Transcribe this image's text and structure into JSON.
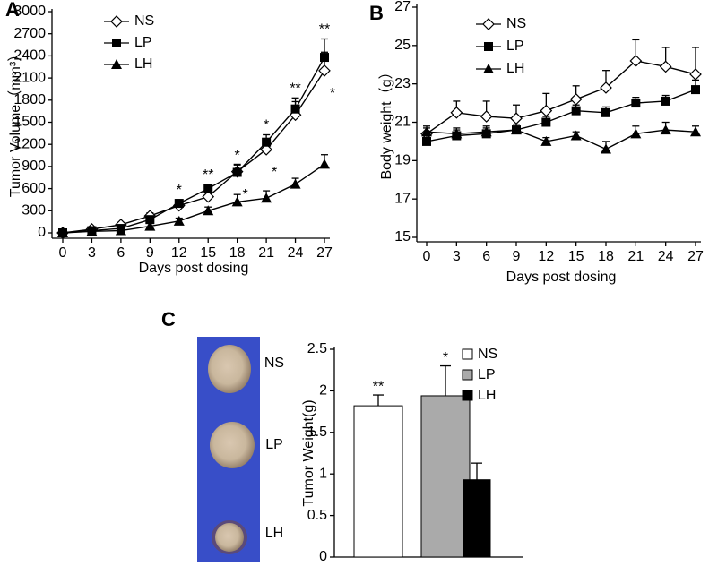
{
  "chart_data": [
    {
      "type": "line",
      "panel": "A",
      "y_label": "Tumor Volume（mm³）",
      "x_label": "Days post dosing",
      "x": [
        0,
        3,
        6,
        9,
        12,
        15,
        18,
        21,
        24,
        27
      ],
      "xlim": [
        0,
        27
      ],
      "xticks": [
        0,
        3,
        6,
        9,
        12,
        15,
        18,
        21,
        24,
        27
      ],
      "ylim": [
        0,
        3000
      ],
      "yticks": [
        0,
        300,
        600,
        900,
        1200,
        1500,
        1800,
        2100,
        2400,
        2700,
        3000
      ],
      "series": [
        {
          "name": "NS",
          "color": "#000000",
          "marker": "diamond",
          "values": [
            0,
            50,
            110,
            230,
            370,
            490,
            830,
            1130,
            1600,
            2200
          ],
          "errors": [
            20,
            20,
            30,
            40,
            50,
            60,
            100,
            150,
            180,
            250
          ],
          "significance": [
            null,
            null,
            null,
            null,
            null,
            null,
            "*",
            "*",
            null,
            "*"
          ]
        },
        {
          "name": "LP",
          "color": "#000000",
          "marker": "square",
          "values": [
            0,
            30,
            60,
            180,
            400,
            600,
            820,
            1230,
            1680,
            2380
          ],
          "errors": [
            20,
            20,
            30,
            40,
            50,
            60,
            100,
            100,
            150,
            250
          ],
          "significance": [
            null,
            null,
            null,
            null,
            "*",
            "**",
            "*",
            "*",
            "**",
            "**"
          ]
        },
        {
          "name": "LH",
          "color": "#000000",
          "marker": "triangle",
          "values": [
            0,
            20,
            30,
            90,
            160,
            300,
            420,
            470,
            660,
            930
          ],
          "errors": [
            20,
            20,
            30,
            40,
            40,
            50,
            100,
            100,
            80,
            130
          ],
          "significance": [
            null,
            null,
            null,
            null,
            null,
            null,
            null,
            null,
            null,
            null
          ]
        }
      ]
    },
    {
      "type": "line",
      "panel": "B",
      "y_label": "Body weight（g）",
      "x_label": "Days post dosing",
      "x": [
        0,
        3,
        6,
        9,
        12,
        15,
        18,
        21,
        24,
        27
      ],
      "xlim": [
        0,
        27
      ],
      "xticks": [
        0,
        3,
        6,
        9,
        12,
        15,
        18,
        21,
        24,
        27
      ],
      "ylim": [
        15,
        27
      ],
      "yticks": [
        15,
        17,
        19,
        21,
        23,
        25,
        27
      ],
      "series": [
        {
          "name": "NS",
          "color": "#000000",
          "marker": "diamond",
          "values": [
            20.4,
            21.5,
            21.3,
            21.2,
            21.6,
            22.2,
            22.8,
            24.2,
            23.9,
            23.5
          ],
          "errors": [
            0.3,
            0.6,
            0.8,
            0.7,
            0.9,
            0.7,
            0.9,
            1.1,
            1.0,
            1.4
          ]
        },
        {
          "name": "LP",
          "color": "#000000",
          "marker": "square",
          "values": [
            20.0,
            20.3,
            20.4,
            20.6,
            21.0,
            21.6,
            21.5,
            22.0,
            22.1,
            22.7
          ],
          "errors": [
            0.3,
            0.3,
            0.3,
            0.3,
            0.3,
            0.3,
            0.3,
            0.3,
            0.3,
            0.5
          ]
        },
        {
          "name": "LH",
          "color": "#000000",
          "marker": "triangle",
          "values": [
            20.5,
            20.4,
            20.5,
            20.6,
            20.0,
            20.3,
            19.6,
            20.4,
            20.6,
            20.5
          ],
          "errors": [
            0.3,
            0.3,
            0.3,
            0.3,
            0.2,
            0.2,
            0.4,
            0.4,
            0.4,
            0.3
          ]
        }
      ]
    },
    {
      "type": "bar",
      "panel": "C",
      "y_label": "Tumor Weight(g)",
      "categories": [
        "NS",
        "LP",
        "LH"
      ],
      "values": [
        1.82,
        1.94,
        0.93
      ],
      "errors": [
        0.13,
        0.36,
        0.2
      ],
      "colors": [
        "#ffffff",
        "#aaaaaa",
        "#000000"
      ],
      "significance": [
        "**",
        "*",
        null
      ],
      "ylim": [
        0,
        2.5
      ],
      "yticks": [
        0,
        0.5,
        1,
        1.5,
        2,
        2.5
      ],
      "photo_labels": [
        "NS",
        "LP",
        "LH"
      ]
    }
  ]
}
